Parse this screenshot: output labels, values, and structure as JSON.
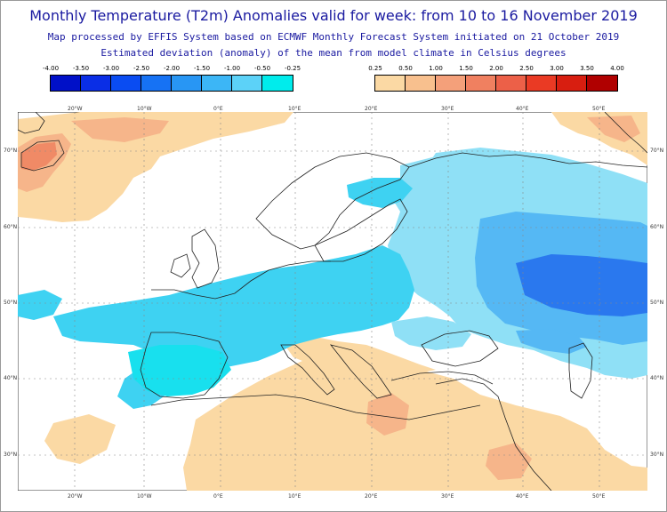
{
  "title": "Monthly Temperature (T2m) Anomalies valid for week: from 10 to 16 November 2019",
  "subtitle1": "Map processed by EFFIS System based on ECMWF Monthly Forecast System initiated on 21 October 2019",
  "subtitle2": "Estimated deviation (anomaly) of the mean from model climate in Celsius degrees",
  "legend_cold": {
    "ticks": [
      "-4.00",
      "-3.50",
      "-3.00",
      "-2.50",
      "-2.00",
      "-1.50",
      "-1.00",
      "-0.50",
      "-0.25"
    ],
    "colors": [
      "#0010c8",
      "#0a2ee6",
      "#0a4cf2",
      "#1672f4",
      "#2896f4",
      "#3cb6f6",
      "#5cd2f8",
      "#00ecec"
    ]
  },
  "legend_warm": {
    "ticks": [
      "0.25",
      "0.50",
      "1.00",
      "1.50",
      "2.00",
      "2.50",
      "3.00",
      "3.50",
      "4.00"
    ],
    "colors": [
      "#fbd9a4",
      "#f8c08e",
      "#f4a07a",
      "#f08060",
      "#ec6048",
      "#ea3a24",
      "#d81e10",
      "#b00000"
    ]
  },
  "map": {
    "lon_labels": [
      "20°W",
      "10°W",
      "0°E",
      "10°E",
      "20°E",
      "30°E",
      "40°E",
      "50°E"
    ],
    "lat_labels": [
      "70°N",
      "60°N",
      "50°N",
      "40°N",
      "30°N"
    ],
    "colors": {
      "warm_1": "#fbd9a4",
      "warm_2": "#f6b58a",
      "warm_3": "#f08a66",
      "cold_1": "#8fe0f6",
      "cold_2": "#3ed2f2",
      "cold_3": "#18e0ee",
      "cold_4": "#55b8f4",
      "cold_5": "#2a78ee",
      "coast": "#222222",
      "grid": "#888888"
    }
  }
}
